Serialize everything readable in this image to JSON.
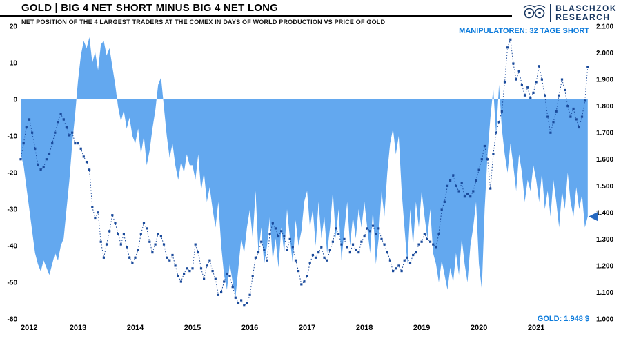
{
  "header": {
    "title": "GOLD | BIG 4 NET SHORT MINUS BIG 4 NET LONG",
    "subtitle": "NET POSITION OF THE 4 LARGEST TRADERS AT THE COMEX IN DAYS OF WORLD PRODUCTION VS PRICE OF GOLD",
    "logo": {
      "line1": "BLASCHZOK",
      "line2": "RESEARCH"
    }
  },
  "annotations": {
    "manipulators_label": "MANIPULATOREN: 32 TAGE SHORT",
    "gold_price_label": "GOLD: 1.948 $",
    "current_marker_value": -32
  },
  "colors": {
    "area": "#63a8ef",
    "line": "#1a4a9b",
    "annotation": "#0d7bdb",
    "triangle": "#2669c0",
    "logo": "#16355f",
    "axis_text": "#000000"
  },
  "chart_data": {
    "type": "line+area",
    "title": "GOLD | BIG 4 NET SHORT MINUS BIG 4 NET LONG",
    "subtitle": "NET POSITION OF THE 4 LARGEST TRADERS AT THE COMEX IN DAYS OF WORLD PRODUCTION VS PRICE OF GOLD",
    "grid": false,
    "legend": "none",
    "x_axis": {
      "ticks": [
        2012,
        2013,
        2014,
        2015,
        2016,
        2017,
        2018,
        2019,
        2020,
        2021
      ],
      "range": [
        2012,
        2021.95
      ]
    },
    "left_axis": {
      "ticks": [
        20,
        10,
        0,
        -10,
        -20,
        -30,
        -40,
        -50,
        -60
      ],
      "range": [
        -60,
        20
      ],
      "description": "days of world production"
    },
    "right_axis": {
      "tick_labels": [
        "2.100",
        "2.000",
        "1.900",
        "1.800",
        "1.700",
        "1.600",
        "1.500",
        "1.400",
        "1.300",
        "1.200",
        "1.100",
        "1.000"
      ],
      "tick_values": [
        2100,
        2000,
        1900,
        1800,
        1700,
        1600,
        1500,
        1400,
        1300,
        1200,
        1100,
        1000
      ],
      "range": [
        1000,
        2100
      ],
      "description": "gold price in USD"
    },
    "series": [
      {
        "name": "Big 4 net short minus Big 4 net long (days of world production)",
        "type": "area",
        "axis": "left",
        "x_start": 2012.0,
        "x_step": 0.05,
        "values": [
          -15,
          -18,
          -24,
          -30,
          -36,
          -42,
          -45,
          -47,
          -44,
          -46,
          -48,
          -45,
          -42,
          -44,
          -40,
          -38,
          -30,
          -22,
          -12,
          -4,
          5,
          12,
          16,
          14,
          17,
          10,
          13,
          8,
          15,
          16,
          12,
          14,
          9,
          4,
          -2,
          -6,
          -3,
          -8,
          -5,
          -10,
          -12,
          -8,
          -15,
          -10,
          -18,
          -14,
          -8,
          -3,
          4,
          6,
          -2,
          -10,
          -16,
          -12,
          -18,
          -22,
          -17,
          -20,
          -15,
          -18,
          -18,
          -22,
          -15,
          -25,
          -20,
          -28,
          -24,
          -30,
          -35,
          -28,
          -40,
          -48,
          -52,
          -45,
          -50,
          -54,
          -46,
          -38,
          -42,
          -35,
          -30,
          -38,
          -25,
          -42,
          -35,
          -45,
          -40,
          -32,
          -44,
          -38,
          -46,
          -35,
          -42,
          -30,
          -38,
          -45,
          -33,
          -40,
          -36,
          -28,
          -25,
          -35,
          -30,
          -40,
          -28,
          -38,
          -32,
          -42,
          -35,
          -25,
          -38,
          -30,
          -44,
          -36,
          -28,
          -40,
          -32,
          -38,
          -30,
          -35,
          -28,
          -35,
          -42,
          -30,
          -45,
          -38,
          -25,
          -32,
          -20,
          -12,
          -8,
          -15,
          -10,
          -25,
          -35,
          -45,
          -30,
          -40,
          -28,
          -35,
          -25,
          -32,
          -38,
          -30,
          -42,
          -45,
          -50,
          -44,
          -48,
          -52,
          -46,
          -50,
          -42,
          -48,
          -38,
          -45,
          -50,
          -40,
          -35,
          -28,
          -45,
          -52,
          -30,
          -15,
          -5,
          3,
          -10,
          4,
          -8,
          -15,
          -20,
          -12,
          -18,
          -25,
          -15,
          -20,
          -28,
          -22,
          -25,
          -18,
          -22,
          -28,
          -20,
          -30,
          -25,
          -32,
          -22,
          -28,
          -35,
          -25,
          -30,
          -20,
          -28,
          -32,
          -24,
          -30,
          -26,
          -35,
          -32
        ]
      },
      {
        "name": "Gold price (USD)",
        "type": "line",
        "axis": "right",
        "x_start": 2012.0,
        "x_step": 0.05,
        "values": [
          1600,
          1660,
          1720,
          1750,
          1700,
          1640,
          1580,
          1560,
          1570,
          1600,
          1620,
          1660,
          1700,
          1740,
          1770,
          1750,
          1720,
          1690,
          1700,
          1660,
          1660,
          1640,
          1610,
          1590,
          1560,
          1420,
          1380,
          1400,
          1290,
          1230,
          1280,
          1330,
          1390,
          1360,
          1320,
          1280,
          1320,
          1270,
          1230,
          1210,
          1230,
          1260,
          1320,
          1360,
          1340,
          1290,
          1250,
          1280,
          1320,
          1310,
          1280,
          1230,
          1220,
          1240,
          1200,
          1160,
          1140,
          1170,
          1190,
          1180,
          1190,
          1280,
          1250,
          1190,
          1150,
          1200,
          1220,
          1180,
          1150,
          1090,
          1100,
          1140,
          1170,
          1160,
          1120,
          1080,
          1060,
          1070,
          1050,
          1060,
          1090,
          1160,
          1230,
          1250,
          1290,
          1260,
          1220,
          1320,
          1360,
          1340,
          1310,
          1330,
          1310,
          1260,
          1300,
          1270,
          1220,
          1180,
          1130,
          1140,
          1160,
          1210,
          1240,
          1230,
          1250,
          1270,
          1230,
          1220,
          1260,
          1290,
          1340,
          1320,
          1280,
          1300,
          1270,
          1250,
          1280,
          1260,
          1250,
          1290,
          1310,
          1340,
          1330,
          1350,
          1320,
          1340,
          1300,
          1280,
          1250,
          1220,
          1180,
          1190,
          1200,
          1180,
          1220,
          1230,
          1210,
          1240,
          1250,
          1280,
          1290,
          1320,
          1300,
          1290,
          1280,
          1270,
          1320,
          1410,
          1440,
          1500,
          1520,
          1540,
          1500,
          1480,
          1510,
          1460,
          1470,
          1460,
          1480,
          1520,
          1560,
          1600,
          1650,
          1600,
          1490,
          1620,
          1700,
          1740,
          1780,
          1890,
          2020,
          2050,
          1960,
          1900,
          1930,
          1880,
          1840,
          1870,
          1830,
          1850,
          1890,
          1950,
          1900,
          1840,
          1760,
          1700,
          1740,
          1780,
          1840,
          1900,
          1860,
          1800,
          1760,
          1790,
          1750,
          1720,
          1760,
          1820,
          1948
        ]
      }
    ]
  }
}
